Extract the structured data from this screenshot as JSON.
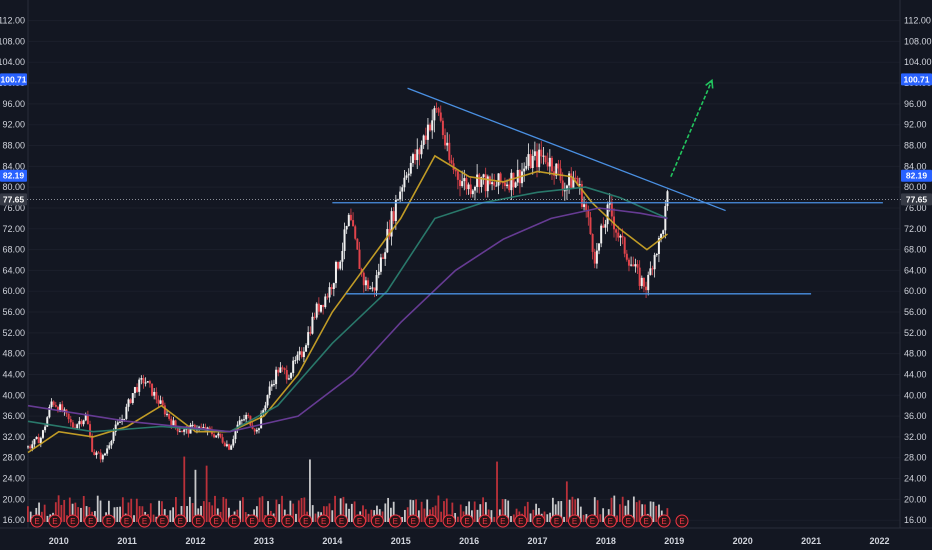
{
  "chart_data": {
    "type": "candlestick",
    "y_axis": {
      "ticks": [
        16,
        20,
        24,
        28,
        32,
        36,
        40,
        44,
        48,
        52,
        56,
        60,
        64,
        68,
        72,
        76,
        80,
        84,
        88,
        92,
        96,
        100,
        104,
        108,
        112
      ],
      "tick_labels": [
        "16.00",
        "20.00",
        "24.00",
        "28.00",
        "32.00",
        "36.00",
        "40.00",
        "44.00",
        "48.00",
        "52.00",
        "56.00",
        "60.00",
        "64.00",
        "68.00",
        "72.00",
        "76.00",
        "80.00",
        "84.00",
        "88.00",
        "92.00",
        "96.00",
        "100.00",
        "104.00",
        "108.00",
        "112.00"
      ],
      "ylim": [
        14.5,
        115
      ]
    },
    "x_axis": {
      "labels": [
        "2010",
        "2011",
        "2012",
        "2013",
        "2014",
        "2015",
        "2016",
        "2017",
        "2018",
        "2019",
        "2020",
        "2021",
        "2022"
      ],
      "xlim": [
        2009.55,
        2022.3
      ]
    },
    "badges": [
      {
        "label": "100.71",
        "value": 100.71,
        "color": "#2962ff",
        "side": "both"
      },
      {
        "label": "82.19",
        "value": 82.19,
        "color": "#2962ff",
        "side": "both"
      },
      {
        "label": "77.65",
        "value": 77.65,
        "color": "#363a45",
        "side": "both"
      }
    ],
    "current_price_line": 77.65,
    "price_path": [
      [
        2009.55,
        30
      ],
      [
        2009.75,
        32
      ],
      [
        2009.9,
        39
      ],
      [
        2010.05,
        37
      ],
      [
        2010.2,
        34
      ],
      [
        2010.4,
        36
      ],
      [
        2010.5,
        29
      ],
      [
        2010.65,
        28
      ],
      [
        2010.8,
        33
      ],
      [
        2010.95,
        36
      ],
      [
        2011.1,
        41
      ],
      [
        2011.25,
        43
      ],
      [
        2011.4,
        40
      ],
      [
        2011.55,
        37
      ],
      [
        2011.7,
        34
      ],
      [
        2011.85,
        33
      ],
      [
        2012.0,
        34
      ],
      [
        2012.2,
        33
      ],
      [
        2012.35,
        32
      ],
      [
        2012.5,
        30
      ],
      [
        2012.6,
        34
      ],
      [
        2012.75,
        36
      ],
      [
        2012.9,
        33
      ],
      [
        2013.05,
        40
      ],
      [
        2013.2,
        45
      ],
      [
        2013.35,
        44
      ],
      [
        2013.55,
        48
      ],
      [
        2013.75,
        56
      ],
      [
        2013.95,
        60
      ],
      [
        2014.1,
        66
      ],
      [
        2014.25,
        74
      ],
      [
        2014.45,
        62
      ],
      [
        2014.6,
        60
      ],
      [
        2014.75,
        68
      ],
      [
        2014.95,
        78
      ],
      [
        2015.1,
        84
      ],
      [
        2015.25,
        86
      ],
      [
        2015.4,
        92
      ],
      [
        2015.55,
        95
      ],
      [
        2015.7,
        85
      ],
      [
        2015.85,
        82
      ],
      [
        2016.0,
        80
      ],
      [
        2016.15,
        82
      ],
      [
        2016.3,
        80
      ],
      [
        2016.5,
        81
      ],
      [
        2016.7,
        82
      ],
      [
        2016.9,
        85
      ],
      [
        2017.1,
        86
      ],
      [
        2017.25,
        84
      ],
      [
        2017.4,
        80
      ],
      [
        2017.55,
        82
      ],
      [
        2017.7,
        76
      ],
      [
        2017.85,
        66
      ],
      [
        2017.95,
        72
      ],
      [
        2018.05,
        76
      ],
      [
        2018.2,
        70
      ],
      [
        2018.35,
        66
      ],
      [
        2018.5,
        62
      ],
      [
        2018.6,
        61
      ],
      [
        2018.7,
        67
      ],
      [
        2018.8,
        70
      ],
      [
        2018.9,
        77.65
      ]
    ],
    "moving_averages": [
      {
        "color": "#c9a227",
        "points": [
          [
            2009.55,
            29
          ],
          [
            2010.0,
            33
          ],
          [
            2010.5,
            32
          ],
          [
            2011.0,
            34
          ],
          [
            2011.5,
            38
          ],
          [
            2012.0,
            33
          ],
          [
            2012.5,
            33
          ],
          [
            2013.0,
            36
          ],
          [
            2013.5,
            44
          ],
          [
            2014.0,
            56
          ],
          [
            2014.5,
            65
          ],
          [
            2015.0,
            74
          ],
          [
            2015.5,
            86
          ],
          [
            2016.0,
            82
          ],
          [
            2016.5,
            81
          ],
          [
            2017.0,
            83
          ],
          [
            2017.5,
            82
          ],
          [
            2017.8,
            77
          ],
          [
            2018.2,
            72
          ],
          [
            2018.6,
            68
          ],
          [
            2018.9,
            71
          ]
        ]
      },
      {
        "color": "#2a7d6f",
        "points": [
          [
            2009.55,
            35
          ],
          [
            2010.5,
            33
          ],
          [
            2011.5,
            34
          ],
          [
            2012.5,
            33
          ],
          [
            2013.2,
            38
          ],
          [
            2014.0,
            50
          ],
          [
            2014.8,
            60
          ],
          [
            2015.5,
            74
          ],
          [
            2016.2,
            77
          ],
          [
            2017.0,
            79
          ],
          [
            2017.7,
            80
          ],
          [
            2018.2,
            78
          ],
          [
            2018.9,
            74
          ]
        ]
      },
      {
        "color": "#6a3d9a",
        "points": [
          [
            2009.55,
            38
          ],
          [
            2011.0,
            35
          ],
          [
            2012.5,
            33
          ],
          [
            2013.5,
            36
          ],
          [
            2014.3,
            44
          ],
          [
            2015.0,
            54
          ],
          [
            2015.8,
            64
          ],
          [
            2016.5,
            70
          ],
          [
            2017.2,
            74
          ],
          [
            2017.9,
            76
          ],
          [
            2018.5,
            75
          ],
          [
            2018.9,
            74
          ]
        ]
      }
    ],
    "trendlines": [
      {
        "color": "#4a90e2",
        "from": [
          2015.1,
          99
        ],
        "to": [
          2019.75,
          75.5
        ]
      },
      {
        "color": "#4a90e2",
        "from": [
          2014.0,
          77
        ],
        "to": [
          2022.05,
          77
        ]
      },
      {
        "color": "#4a90e2",
        "from": [
          2014.2,
          59.5
        ],
        "to": [
          2021.0,
          59.5
        ]
      }
    ],
    "arrow": {
      "color": "#22c55e",
      "from": [
        2018.95,
        82
      ],
      "to": [
        2019.55,
        100.5
      ]
    },
    "volume_bars": 230,
    "earnings_markers": {
      "label": "E",
      "count": 37
    }
  }
}
